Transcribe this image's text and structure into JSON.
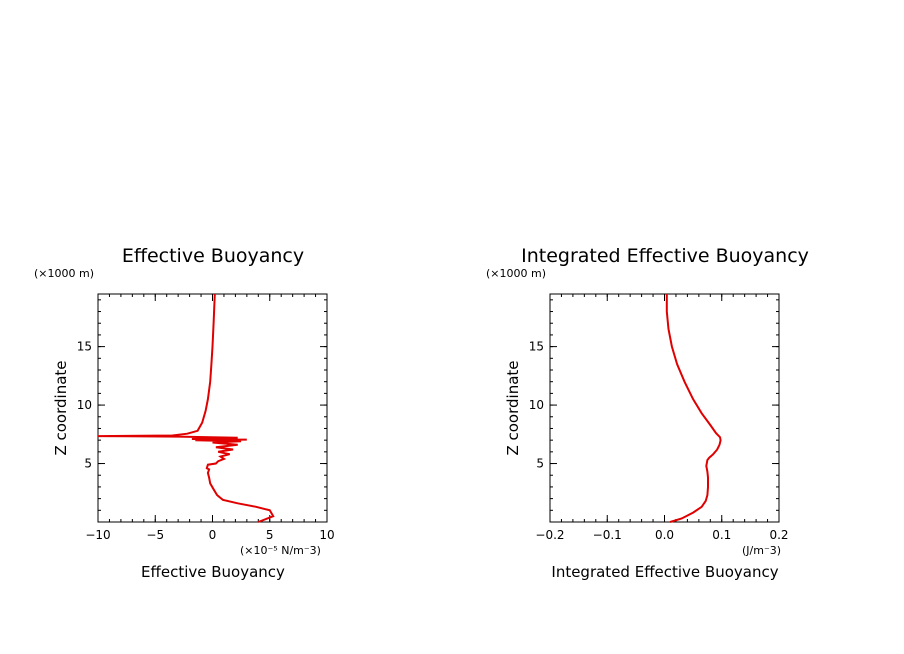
{
  "chart_data": [
    {
      "type": "line",
      "title": "Effective Buoyancy",
      "xlabel": "Effective Buoyancy",
      "ylabel": "Z coordinate",
      "x_units": "(×10⁻⁵ N/m⁻3)",
      "y_units": "(×1000 m)",
      "xlim": [
        -10,
        10
      ],
      "ylim": [
        0,
        19.5
      ],
      "x_ticks": [
        -10,
        -5,
        0,
        5,
        10
      ],
      "x_tick_labels": [
        "−10",
        "−5",
        "0",
        "5",
        "10"
      ],
      "y_ticks": [
        5,
        10,
        15
      ],
      "y_tick_labels": [
        "5",
        "10",
        "15"
      ],
      "series_color": "#e00000",
      "series": [
        {
          "x": [
            4.0,
            5.3,
            5.0,
            3.8,
            2.2,
            0.9,
            0.4,
            0.1,
            -0.2,
            -0.3,
            -0.4,
            -0.3,
            -0.5,
            -0.4,
            0.3,
            0.5,
            1.0,
            0.7,
            1.5,
            0.5,
            1.8,
            0.3,
            2.2,
            0.0,
            2.5,
            -1.5,
            3.0,
            -1.8,
            2.2,
            -3.0,
            -10.5,
            -3.5,
            -2.2,
            -1.3,
            -0.9,
            -0.6,
            -0.4,
            -0.2,
            -0.1,
            0.0,
            0.1,
            0.2
          ],
          "y": [
            0.0,
            0.5,
            1.0,
            1.3,
            1.6,
            1.9,
            2.3,
            2.8,
            3.3,
            3.8,
            4.2,
            4.5,
            4.6,
            4.9,
            5.0,
            5.2,
            5.4,
            5.6,
            5.8,
            6.0,
            6.2,
            6.4,
            6.6,
            6.8,
            6.9,
            7.0,
            7.05,
            7.1,
            7.2,
            7.3,
            7.35,
            7.4,
            7.55,
            7.8,
            8.5,
            9.5,
            10.5,
            12.0,
            13.5,
            15.0,
            17.0,
            19.5
          ]
        }
      ]
    },
    {
      "type": "line",
      "title": "Integrated Effective Buoyancy",
      "xlabel": "Integrated Effective Buoyancy",
      "ylabel": "Z coordinate",
      "x_units": "(J/m⁻3)",
      "y_units": "(×1000 m)",
      "xlim": [
        -0.2,
        0.2
      ],
      "ylim": [
        0,
        19.5
      ],
      "x_ticks": [
        -0.2,
        -0.1,
        0.0,
        0.1,
        0.2
      ],
      "x_tick_labels": [
        "−0.2",
        "−0.1",
        "0.0",
        "0.1",
        "0.2"
      ],
      "y_ticks": [
        5,
        10,
        15
      ],
      "y_tick_labels": [
        "5",
        "10",
        "15"
      ],
      "series_color": "#e00000",
      "series": [
        {
          "x": [
            0.01,
            0.03,
            0.05,
            0.065,
            0.072,
            0.075,
            0.076,
            0.076,
            0.075,
            0.073,
            0.075,
            0.078,
            0.085,
            0.092,
            0.096,
            0.098,
            0.097,
            0.09,
            0.08,
            0.065,
            0.05,
            0.035,
            0.022,
            0.013,
            0.007,
            0.004,
            0.004
          ],
          "y": [
            0.0,
            0.3,
            0.8,
            1.3,
            1.8,
            2.3,
            3.0,
            3.8,
            4.3,
            4.8,
            5.3,
            5.5,
            5.8,
            6.2,
            6.6,
            7.0,
            7.25,
            7.6,
            8.3,
            9.3,
            10.5,
            12.0,
            13.5,
            15.0,
            16.5,
            18.0,
            19.5
          ]
        }
      ]
    }
  ]
}
